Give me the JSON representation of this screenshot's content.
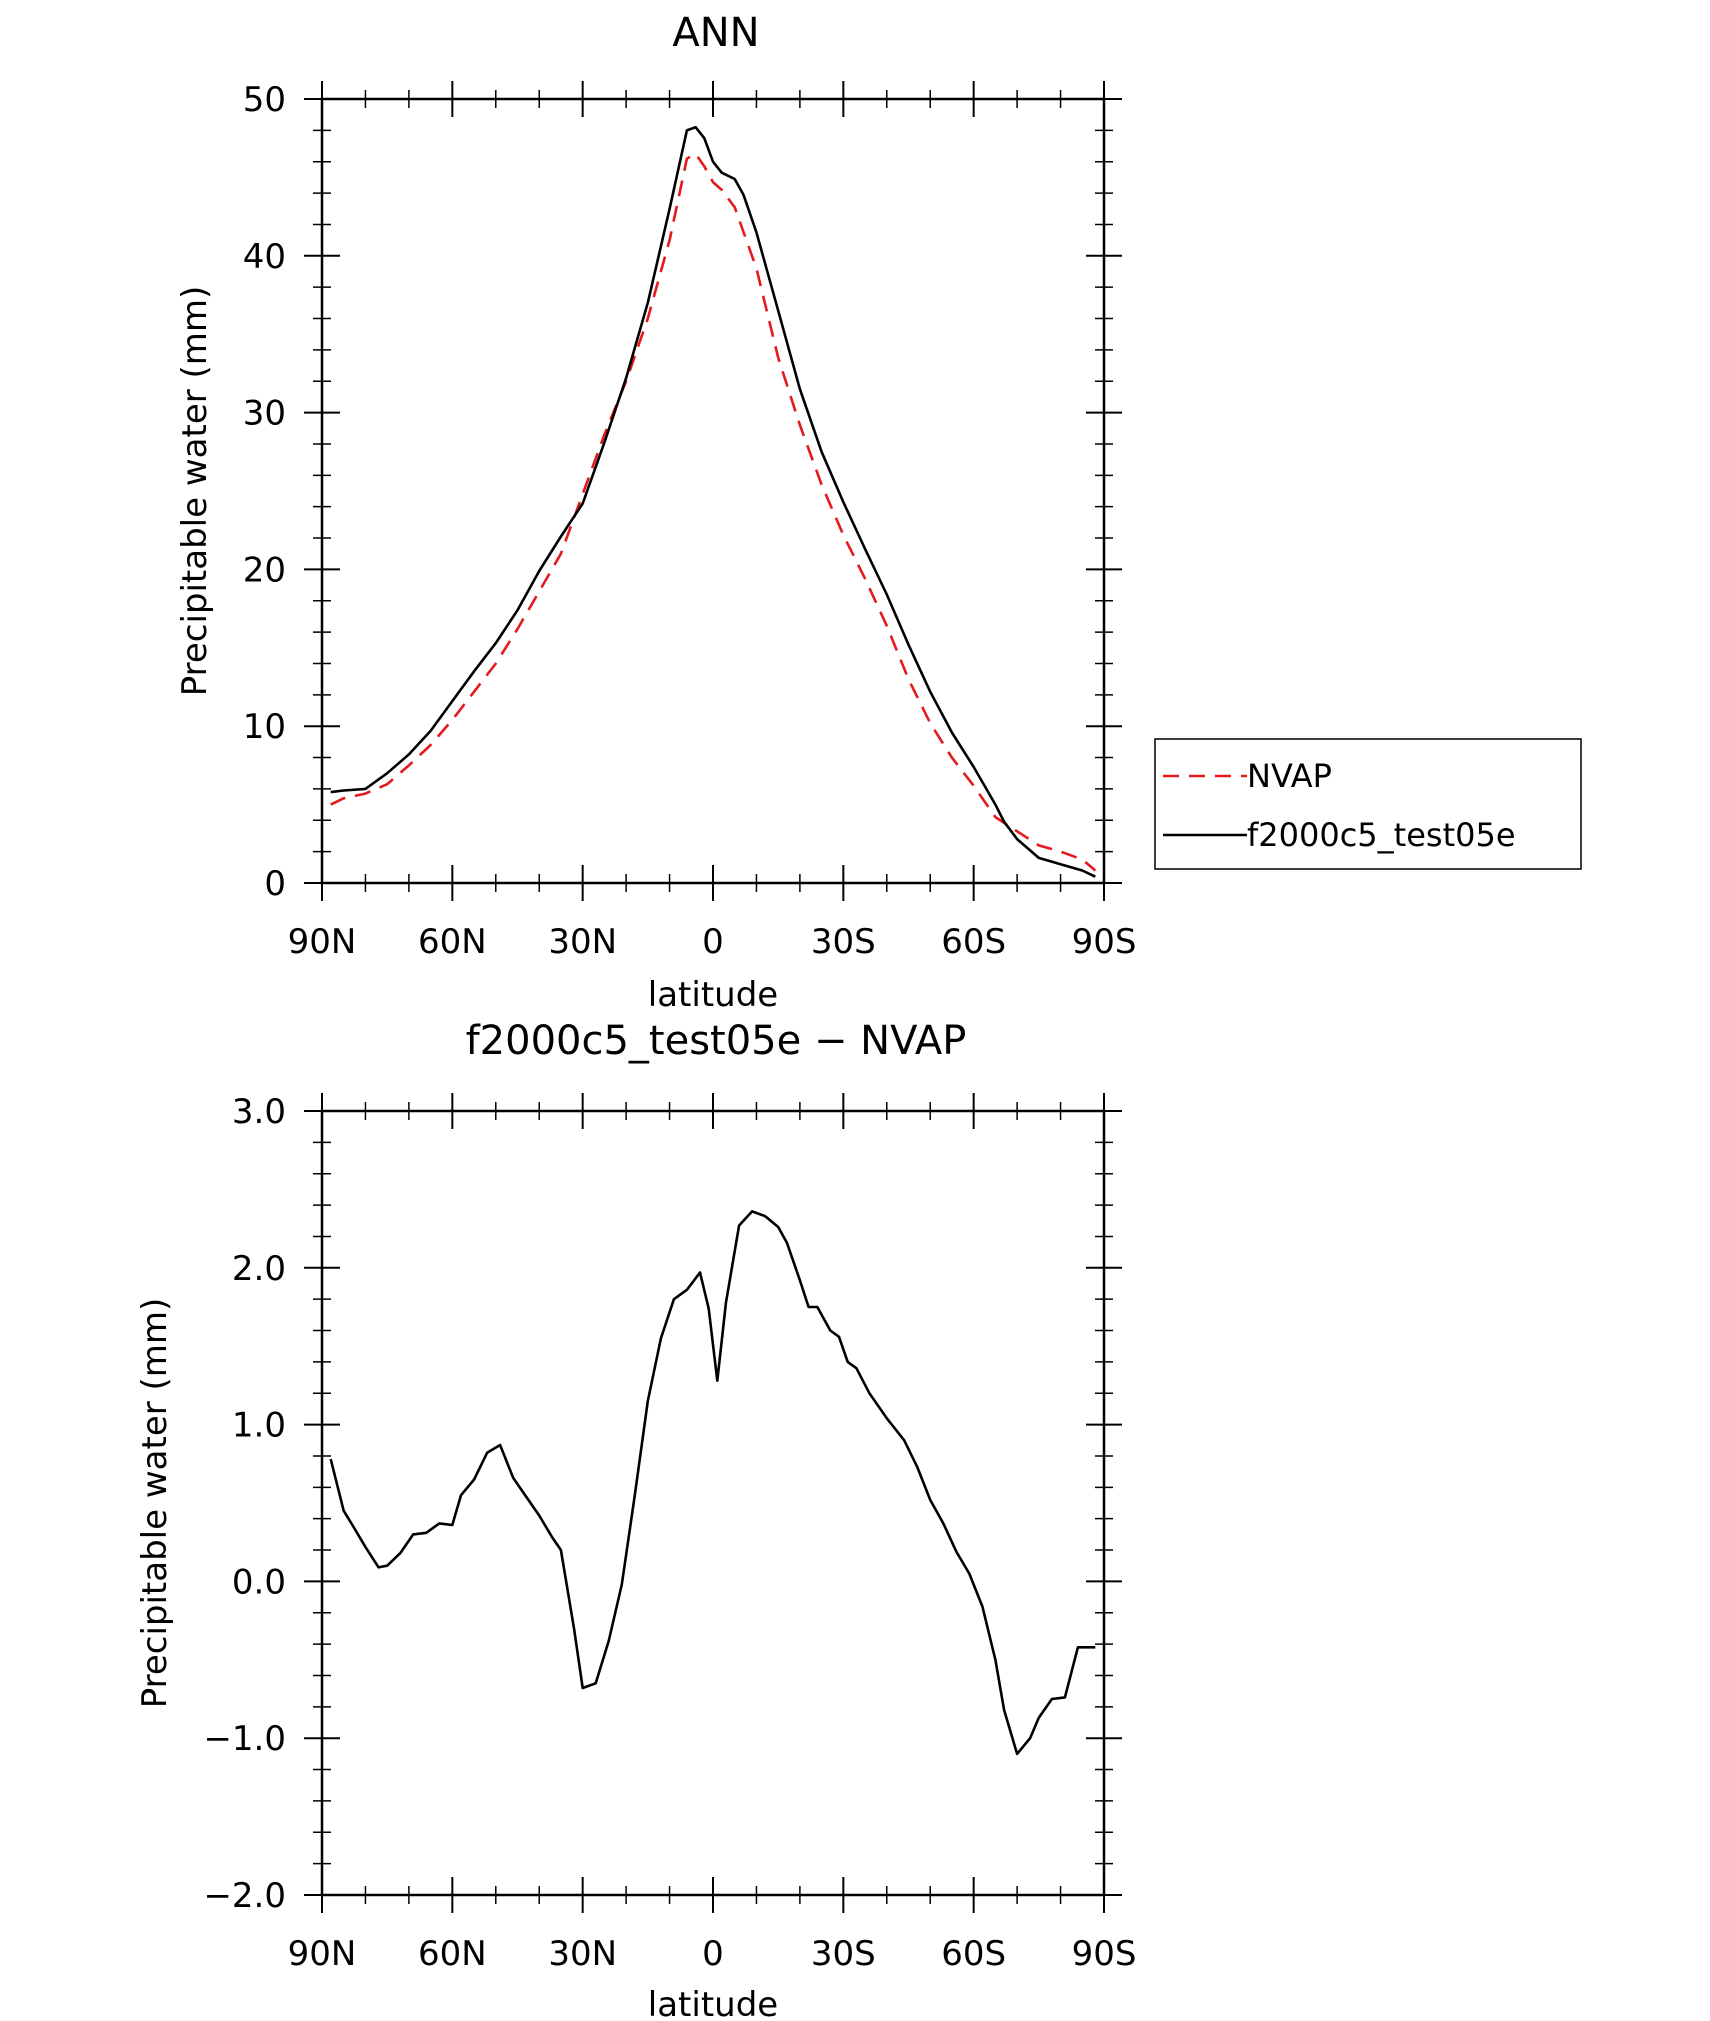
{
  "chart_data": [
    {
      "type": "line",
      "title": "ANN",
      "xlabel": "latitude",
      "ylabel": "Precipitable water (mm)",
      "xlim": [
        90,
        -90
      ],
      "ylim": [
        0,
        50
      ],
      "yticks": [
        0,
        10,
        20,
        30,
        40,
        50
      ],
      "ytick_labels": [
        "0",
        "10",
        "20",
        "30",
        "40",
        "50"
      ],
      "xticks": [
        90,
        60,
        30,
        0,
        -30,
        -60,
        -90
      ],
      "xtick_labels": [
        "90N",
        "60N",
        "30N",
        "0",
        "30S",
        "60S",
        "90S"
      ],
      "grid": false,
      "legend_position": "right",
      "series": [
        {
          "name": "NVAP",
          "color": "#e41a1c",
          "dash": "dashed",
          "x": [
            88,
            85,
            80,
            75,
            70,
            65,
            60,
            55,
            50,
            45,
            40,
            35,
            30,
            25,
            20,
            15,
            10,
            6,
            4,
            2,
            0,
            -2,
            -5,
            -10,
            -15,
            -20,
            -25,
            -30,
            -35,
            -40,
            -45,
            -50,
            -55,
            -60,
            -65,
            -70,
            -75,
            -80,
            -85,
            -88
          ],
          "y": [
            5.0,
            5.4,
            5.7,
            6.3,
            7.5,
            8.8,
            10.4,
            12.2,
            14.0,
            16.2,
            18.6,
            21.0,
            24.8,
            28.6,
            32.0,
            36.0,
            41.0,
            46.2,
            46.5,
            45.7,
            44.7,
            44.2,
            43.1,
            39.2,
            33.5,
            29.2,
            25.4,
            22.2,
            19.4,
            16.4,
            13.0,
            10.2,
            8.0,
            6.2,
            4.2,
            3.3,
            2.4,
            2.0,
            1.5,
            0.8
          ]
        },
        {
          "name": "f2000c5_test05e",
          "color": "#000000",
          "dash": "solid",
          "x": [
            88,
            85,
            80,
            75,
            70,
            65,
            60,
            55,
            50,
            45,
            40,
            35,
            30,
            25,
            20,
            15,
            10,
            6,
            4,
            2,
            0,
            -2,
            -5,
            -7,
            -10,
            -15,
            -20,
            -25,
            -30,
            -35,
            -40,
            -45,
            -50,
            -55,
            -60,
            -65,
            -67,
            -70,
            -75,
            -80,
            -85,
            -88
          ],
          "y": [
            5.8,
            5.9,
            6.0,
            7.0,
            8.2,
            9.7,
            11.6,
            13.5,
            15.3,
            17.4,
            19.9,
            22.1,
            24.2,
            28.1,
            32.2,
            37.0,
            43.0,
            48.0,
            48.2,
            47.5,
            46.0,
            45.3,
            44.9,
            43.9,
            41.5,
            36.5,
            31.5,
            27.5,
            24.3,
            21.3,
            18.4,
            15.2,
            12.2,
            9.6,
            7.4,
            5.0,
            3.9,
            2.8,
            1.6,
            1.2,
            0.8,
            0.4
          ]
        }
      ]
    },
    {
      "type": "line",
      "title": "f2000c5_test05e − NVAP",
      "xlabel": "latitude",
      "ylabel": "Precipitable water (mm)",
      "xlim": [
        90,
        -90
      ],
      "ylim": [
        -2.0,
        3.0
      ],
      "yticks": [
        -2.0,
        -1.0,
        0.0,
        1.0,
        2.0,
        3.0
      ],
      "ytick_labels": [
        "−2.0",
        "−1.0",
        "0.0",
        "1.0",
        "2.0",
        "3.0"
      ],
      "xticks": [
        90,
        60,
        30,
        0,
        -30,
        -60,
        -90
      ],
      "xtick_labels": [
        "90N",
        "60N",
        "30N",
        "0",
        "30S",
        "60S",
        "90S"
      ],
      "grid": false,
      "series": [
        {
          "name": "f2000c5_test05e − NVAP",
          "color": "#000000",
          "dash": "solid",
          "x": [
            88,
            85,
            83,
            80,
            77,
            75,
            72,
            69,
            66,
            63,
            60,
            58,
            55,
            52,
            49,
            46,
            43,
            40,
            37,
            35,
            32,
            30,
            27,
            24,
            21,
            18,
            15,
            12,
            9,
            6,
            3,
            1,
            -1,
            -3,
            -6,
            -9,
            -12,
            -15,
            -17,
            -20,
            -22,
            -24,
            -27,
            -29,
            -31,
            -33,
            -36,
            -38,
            -40,
            -44,
            -47,
            -50,
            -53,
            -56,
            -59,
            -62,
            -65,
            -67,
            -70,
            -73,
            -75,
            -78,
            -81,
            -84,
            -86,
            -88
          ],
          "y": [
            0.78,
            0.45,
            0.36,
            0.22,
            0.09,
            0.1,
            0.18,
            0.3,
            0.31,
            0.37,
            0.36,
            0.55,
            0.65,
            0.82,
            0.87,
            0.66,
            0.54,
            0.42,
            0.28,
            0.2,
            -0.3,
            -0.68,
            -0.65,
            -0.38,
            -0.02,
            0.55,
            1.15,
            1.55,
            1.8,
            1.86,
            1.97,
            1.74,
            1.28,
            1.78,
            2.27,
            2.36,
            2.33,
            2.26,
            2.16,
            1.92,
            1.75,
            1.75,
            1.6,
            1.56,
            1.4,
            1.36,
            1.2,
            1.12,
            1.04,
            0.9,
            0.73,
            0.52,
            0.37,
            0.19,
            0.05,
            -0.16,
            -0.5,
            -0.82,
            -1.1,
            -1.0,
            -0.87,
            -0.75,
            -0.74,
            -0.42,
            -0.42,
            -0.42
          ]
        }
      ]
    }
  ]
}
